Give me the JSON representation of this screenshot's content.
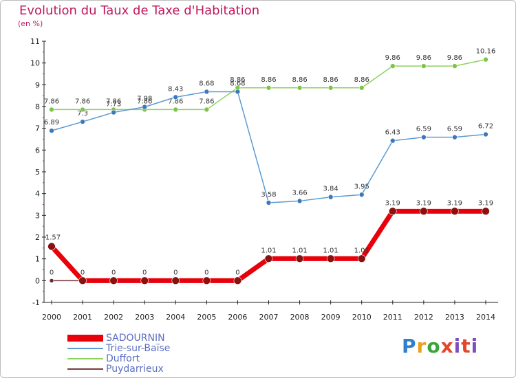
{
  "header": {
    "title": "Evolution du Taux de Taxe d'Habitation",
    "subtitle": "(en %)"
  },
  "logo": {
    "letters": [
      "P",
      "r",
      "o",
      "x",
      "i",
      "t",
      "i"
    ],
    "colors": [
      "#2f7fd0",
      "#e8a21b",
      "#38a538",
      "#e2462d",
      "#7a4fc0",
      "#e2462d",
      "#7a4fc0"
    ]
  },
  "chart_data": {
    "type": "line",
    "x": [
      "2000",
      "2001",
      "2002",
      "2003",
      "2004",
      "2005",
      "2006",
      "2007",
      "2008",
      "2009",
      "2010",
      "2011",
      "2012",
      "2013",
      "2014"
    ],
    "ylim": [
      -1,
      11
    ],
    "yticks": [
      "-1",
      "0",
      "1",
      "2",
      "3",
      "4",
      "5",
      "6",
      "7",
      "8",
      "9",
      "10",
      "11"
    ],
    "grid": false,
    "legend_position": "bottom-left",
    "series": [
      {
        "name": "SADOURNIN",
        "color": "#e8000b",
        "values": [
          1.57,
          0,
          0,
          0,
          0,
          0,
          0,
          1.01,
          1.01,
          1.01,
          1.01,
          3.19,
          3.19,
          3.19,
          3.19
        ],
        "labels": [
          "1.57",
          "0",
          "0",
          "0",
          "0",
          "0",
          "0",
          "1.01",
          "1.01",
          "1.01",
          "1.01",
          "3.19",
          "3.19",
          "3.19",
          "3.19"
        ]
      },
      {
        "name": "Trie-sur-Baïse",
        "color": "#5a9bd3",
        "values": [
          6.89,
          7.3,
          7.73,
          7.98,
          8.43,
          8.68,
          8.68,
          3.58,
          3.66,
          3.84,
          3.95,
          6.43,
          6.59,
          6.59,
          6.72
        ],
        "labels": [
          "6.89",
          "7.3",
          "7.73",
          "7.98",
          "8.43",
          "8.68",
          "8.68",
          "3.58",
          "3.66",
          "3.84",
          "3.95",
          "6.43",
          "6.59",
          "6.59",
          "6.72"
        ]
      },
      {
        "name": "Duffort",
        "color": "#8ed15e",
        "values": [
          7.86,
          7.86,
          7.86,
          7.86,
          7.86,
          7.86,
          8.86,
          8.86,
          8.86,
          8.86,
          8.86,
          9.86,
          9.86,
          9.86,
          10.16
        ],
        "labels": [
          "7.86",
          "7.86",
          "7.86",
          "7.86",
          "7.86",
          "7.86",
          "8.86",
          "8.86",
          "8.86",
          "8.86",
          "8.86",
          "9.86",
          "9.86",
          "9.86",
          "10.16"
        ]
      },
      {
        "name": "Puydarrieux",
        "color": "#7b3a3a",
        "values": [
          0,
          null,
          null,
          null,
          null,
          null,
          null,
          null,
          null,
          null,
          null,
          null,
          null,
          null,
          null
        ],
        "labels": [
          "0",
          "",
          "",
          "",
          "",
          "",
          "",
          "",
          "",
          "",
          "",
          "",
          "",
          "",
          ""
        ]
      }
    ]
  }
}
